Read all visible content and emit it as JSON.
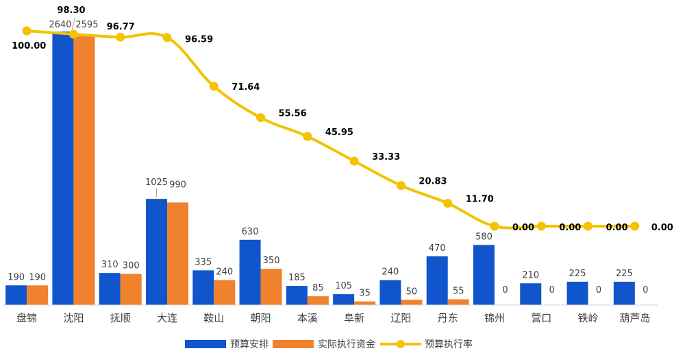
{
  "chart_data": {
    "type": "bar",
    "title": "",
    "xlabel": "",
    "ylabel": "",
    "categories": [
      "盘锦",
      "沈阳",
      "抚顺",
      "大连",
      "鞍山",
      "朝阳",
      "本溪",
      "阜新",
      "辽阳",
      "丹东",
      "锦州",
      "营口",
      "铁岭",
      "葫芦岛"
    ],
    "series": [
      {
        "name": "预算安排",
        "kind": "bar",
        "color": "#1155cc",
        "values": [
          190,
          2640,
          310,
          1025,
          335,
          630,
          185,
          105,
          240,
          470,
          580,
          210,
          225,
          225
        ]
      },
      {
        "name": "实际执行资金",
        "kind": "bar",
        "color": "#f0822e",
        "values": [
          190,
          2595,
          300,
          990,
          240,
          350,
          85,
          35,
          50,
          55,
          0,
          0,
          0,
          0
        ]
      },
      {
        "name": "预算执行率",
        "kind": "line",
        "color": "#f2c300",
        "values": [
          "100.00",
          "98.30",
          "96.77",
          "96.59",
          "71.64",
          "55.56",
          "45.95",
          "33.33",
          "20.83",
          "11.70",
          "0.00",
          "0.00",
          "0.00",
          "0.00"
        ]
      }
    ],
    "ylim": [
      0,
      2720
    ],
    "y2lim": [
      0,
      100
    ],
    "grid": false,
    "legend": "bottom-center",
    "colors": {
      "axis": "#d9d9d9",
      "text": "#404040"
    }
  }
}
